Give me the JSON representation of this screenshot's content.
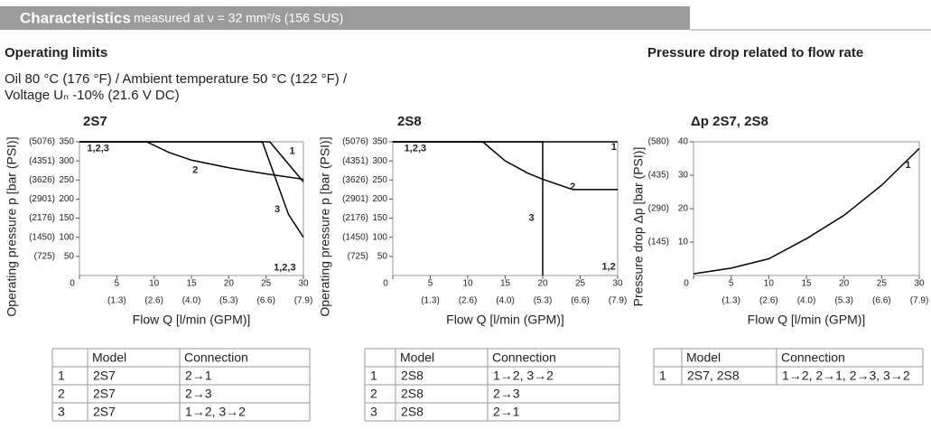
{
  "header": {
    "title": "Characteristics",
    "subtitle": "measured at ν = 32 mm²/s (156 SUS)"
  },
  "sections": {
    "left_title": "Operating limits",
    "right_title": "Pressure drop related to flow rate",
    "conditions": [
      "Oil 80 °C (176 °F) / Ambient temperature 50 °C (122 °F) /",
      "Voltage Uₙ -10% (21.6 V DC)"
    ]
  },
  "chart_data": [
    {
      "type": "line",
      "title": "2S7",
      "xlabel": "Flow Q [l/min (GPM)]",
      "ylabel": "Operating pressure p [bar (PSI)]",
      "xlim": [
        0,
        30
      ],
      "ylim": [
        0,
        350
      ],
      "xticks": [
        0,
        5,
        10,
        15,
        20,
        25,
        30
      ],
      "yticks": [
        50,
        100,
        150,
        200,
        250,
        300,
        350
      ],
      "xticks_gpm": [
        {
          "value": 5,
          "label": "(1.3)"
        },
        {
          "value": 10,
          "label": "(2.6)"
        },
        {
          "value": 15,
          "label": "(4.0)"
        },
        {
          "value": 20,
          "label": "(5.3)"
        },
        {
          "value": 25,
          "label": "(6.6)"
        },
        {
          "value": 30,
          "label": "(7.9)"
        }
      ],
      "yticks_psi": [
        {
          "value": 50,
          "label": "(725)"
        },
        {
          "value": 100,
          "label": "(1450)"
        },
        {
          "value": 150,
          "label": "(2176)"
        },
        {
          "value": 200,
          "label": "(2901)"
        },
        {
          "value": 250,
          "label": "(3626)"
        },
        {
          "value": 300,
          "label": "(4351)"
        },
        {
          "value": 350,
          "label": "(5076)"
        }
      ],
      "series": [
        {
          "name": "1",
          "color": "#000000",
          "x": [
            0,
            25.5,
            30
          ],
          "values": [
            350,
            350,
            245
          ]
        },
        {
          "name": "2",
          "color": "#000000",
          "x": [
            0,
            9,
            12,
            15,
            20,
            25,
            30
          ],
          "values": [
            350,
            350,
            322,
            302,
            282,
            266,
            252
          ]
        },
        {
          "name": "3",
          "color": "#000000",
          "x": [
            0,
            24.5,
            28,
            30
          ],
          "values": [
            350,
            350,
            160,
            100
          ]
        }
      ],
      "annotations": [
        "1,2,3",
        "1,2,3"
      ]
    },
    {
      "type": "line",
      "title": "2S8",
      "xlabel": "Flow Q [l/min (GPM)]",
      "ylabel": "Operating pressure p [bar (PSI)]",
      "xlim": [
        0,
        30
      ],
      "ylim": [
        0,
        350
      ],
      "xticks": [
        0,
        5,
        10,
        15,
        20,
        25,
        30
      ],
      "yticks": [
        50,
        100,
        150,
        200,
        250,
        300,
        350
      ],
      "xticks_gpm": [
        {
          "value": 5,
          "label": "(1.3)"
        },
        {
          "value": 10,
          "label": "(2.6)"
        },
        {
          "value": 15,
          "label": "(4.0)"
        },
        {
          "value": 20,
          "label": "(5.3)"
        },
        {
          "value": 25,
          "label": "(6.6)"
        },
        {
          "value": 30,
          "label": "(7.9)"
        }
      ],
      "yticks_psi": [
        {
          "value": 50,
          "label": "(725)"
        },
        {
          "value": 100,
          "label": "(1450)"
        },
        {
          "value": 150,
          "label": "(2176)"
        },
        {
          "value": 200,
          "label": "(2901)"
        },
        {
          "value": 250,
          "label": "(3626)"
        },
        {
          "value": 300,
          "label": "(4351)"
        },
        {
          "value": 350,
          "label": "(5076)"
        }
      ],
      "series": [
        {
          "name": "1",
          "color": "#000000",
          "x": [
            0,
            30
          ],
          "values": [
            350,
            350
          ]
        },
        {
          "name": "2",
          "color": "#000000",
          "x": [
            0,
            12,
            15,
            18,
            20,
            24,
            30
          ],
          "values": [
            350,
            350,
            300,
            268,
            252,
            225,
            225
          ]
        },
        {
          "name": "3",
          "color": "#000000",
          "x": [
            0,
            20,
            20
          ],
          "values": [
            350,
            350,
            0
          ]
        }
      ],
      "annotations": [
        "1,2,3",
        "1,2"
      ]
    },
    {
      "type": "line",
      "title": "Δp 2S7, 2S8",
      "xlabel": "Flow Q [l/min (GPM)]",
      "ylabel": "Pressure drop Δp [bar (PSI)]",
      "xlim": [
        0,
        30
      ],
      "ylim": [
        0,
        40
      ],
      "xticks": [
        0,
        5,
        10,
        15,
        20,
        25,
        30
      ],
      "yticks": [
        10,
        20,
        30,
        40
      ],
      "xticks_gpm": [
        {
          "value": 5,
          "label": "(1.3)"
        },
        {
          "value": 10,
          "label": "(2.6)"
        },
        {
          "value": 15,
          "label": "(4.0)"
        },
        {
          "value": 20,
          "label": "(5.3)"
        },
        {
          "value": 25,
          "label": "(6.6)"
        },
        {
          "value": 30,
          "label": "(7.9)"
        }
      ],
      "yticks_psi": [
        {
          "value": 10,
          "label": "(145)"
        },
        {
          "value": 20,
          "label": "(290)"
        },
        {
          "value": 30,
          "label": "(435)"
        },
        {
          "value": 40,
          "label": "(580)"
        }
      ],
      "series": [
        {
          "name": "1",
          "color": "#000000",
          "x": [
            0,
            5,
            10,
            15,
            20,
            25,
            30
          ],
          "values": [
            0.5,
            2.2,
            5,
            11,
            18,
            27,
            38
          ]
        }
      ],
      "annotations": []
    }
  ],
  "tables": [
    {
      "header": [
        "Model",
        "Connection"
      ],
      "rows": [
        [
          "1",
          "2S7",
          "2→1"
        ],
        [
          "2",
          "2S7",
          "2→3"
        ],
        [
          "3",
          "2S7",
          "1→2, 3→2"
        ]
      ]
    },
    {
      "header": [
        "Model",
        "Connection"
      ],
      "rows": [
        [
          "1",
          "2S8",
          "1→2, 3→2"
        ],
        [
          "2",
          "2S8",
          "2→3"
        ],
        [
          "3",
          "2S8",
          "2→1"
        ]
      ]
    },
    {
      "header": [
        "Model",
        "Connection"
      ],
      "rows": [
        [
          "1",
          "2S7, 2S8",
          "1→2, 2→1, 2→3, 3→2"
        ]
      ]
    }
  ]
}
